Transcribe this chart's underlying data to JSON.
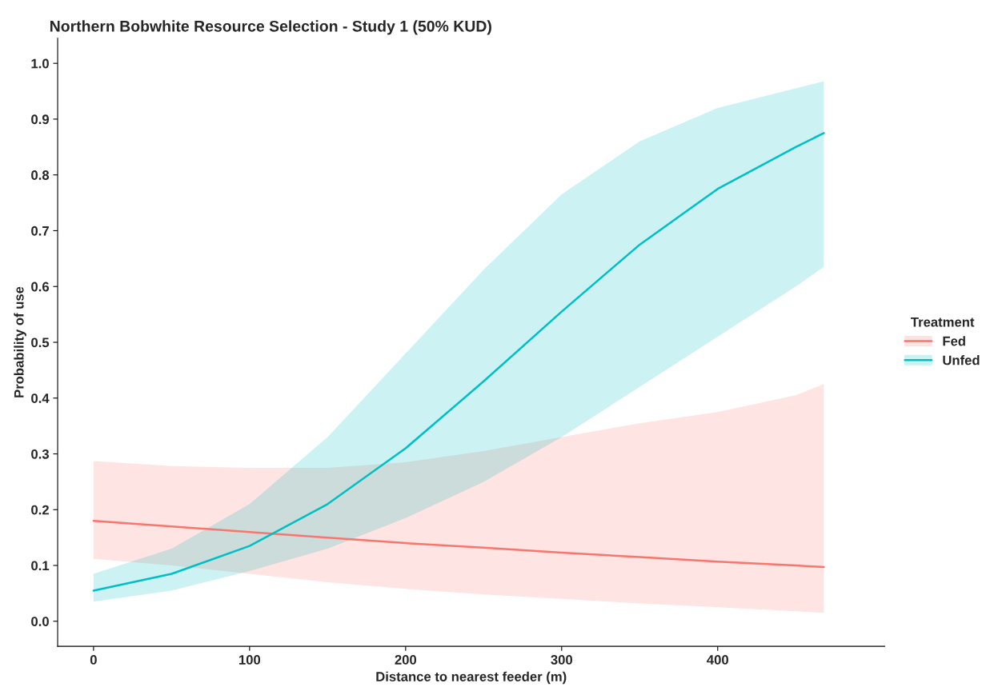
{
  "chart_data": {
    "type": "line",
    "title": "Northern Bobwhite Resource Selection - Study 1 (50% KUD)",
    "xlabel": "Distance to nearest feeder (m)",
    "ylabel": "Probability of use",
    "legend_title": "Treatment",
    "legend": "right",
    "grid": false,
    "xlim": [
      -23,
      507
    ],
    "ylim": [
      -0.045,
      1.045
    ],
    "xticks": [
      0,
      100,
      200,
      300,
      400
    ],
    "yticks": [
      {
        "value": 0,
        "label": "0.0"
      },
      0.1,
      0.2,
      0.3,
      0.4,
      0.5,
      0.6,
      0.7,
      0.8,
      0.9,
      {
        "value": 1,
        "label": "1.0"
      }
    ],
    "series": [
      {
        "name": "Fed",
        "color": "#f8766d",
        "x": [
          0,
          50,
          100,
          150,
          200,
          250,
          300,
          350,
          400,
          450,
          468
        ],
        "values": [
          0.18,
          0.17,
          0.16,
          0.15,
          0.14,
          0.132,
          0.123,
          0.115,
          0.107,
          0.1,
          0.097
        ],
        "lower": [
          0.112,
          0.1,
          0.085,
          0.07,
          0.058,
          0.048,
          0.04,
          0.032,
          0.025,
          0.018,
          0.015
        ],
        "upper": [
          0.287,
          0.278,
          0.275,
          0.275,
          0.285,
          0.305,
          0.33,
          0.355,
          0.375,
          0.405,
          0.425
        ]
      },
      {
        "name": "Unfed",
        "color": "#00bfc4",
        "x": [
          0,
          50,
          100,
          150,
          200,
          250,
          300,
          350,
          400,
          450,
          468
        ],
        "values": [
          0.055,
          0.085,
          0.135,
          0.21,
          0.31,
          0.43,
          0.555,
          0.675,
          0.775,
          0.85,
          0.875
        ],
        "lower": [
          0.035,
          0.055,
          0.09,
          0.13,
          0.185,
          0.25,
          0.33,
          0.42,
          0.51,
          0.6,
          0.635
        ],
        "upper": [
          0.085,
          0.13,
          0.21,
          0.33,
          0.48,
          0.63,
          0.765,
          0.86,
          0.92,
          0.955,
          0.968
        ]
      }
    ]
  }
}
